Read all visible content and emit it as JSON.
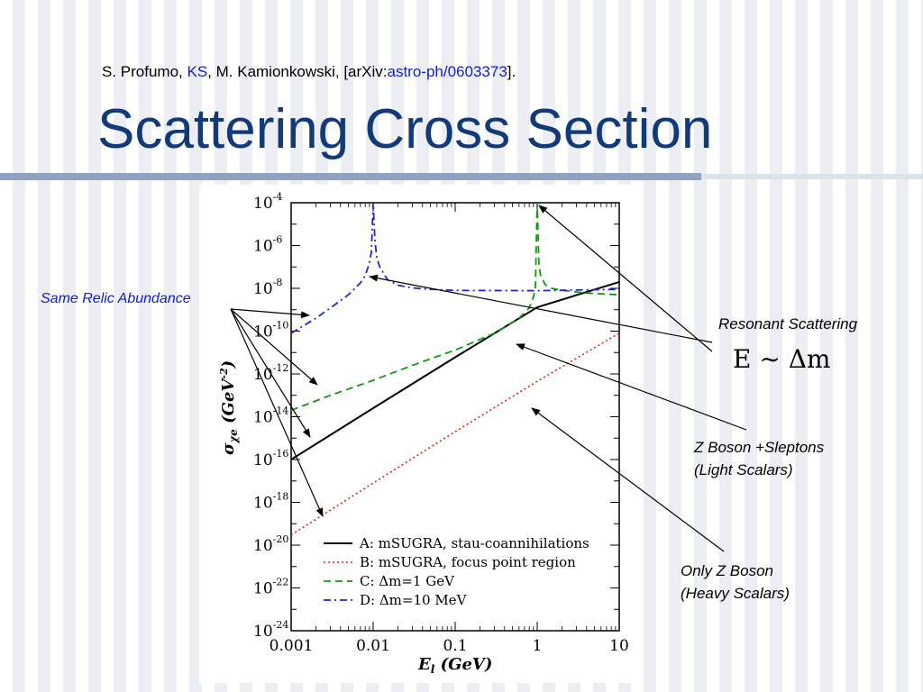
{
  "citation": {
    "authors_a": "S. Profumo, ",
    "authors_ks": "KS",
    "authors_b": ", M. Kamionkowski, [arXiv:",
    "arxiv_id": "astro-ph/0603373",
    "tail": "]."
  },
  "slide_title": "Scattering Cross Section",
  "annotations": {
    "same_relic": "Same Relic Abundance",
    "resonant": "Resonant Scattering",
    "formula": "E ∼ Δm",
    "zboson_sleptons_1": "Z Boson +Sleptons",
    "zboson_sleptons_2": "(Light Scalars)",
    "zboson_only_1": "Only Z Boson",
    "zboson_only_2": "(Heavy Scalars)"
  },
  "colors": {
    "title": "#123a7a",
    "series_a": "#000000",
    "series_b": "#e02020",
    "series_c": "#119911",
    "series_d": "#2222dd",
    "annotation_blue": "#1020d0"
  },
  "chart_data": {
    "type": "line",
    "x_scale": "log",
    "y_scale": "log",
    "xlim": [
      0.001,
      10
    ],
    "ylim": [
      1e-24,
      0.0001
    ],
    "xlabel": "E_l (GeV)",
    "ylabel": "σ_χe (GeV^-2)",
    "x_ticks": [
      "0.001",
      "0.01",
      "0.1",
      "1",
      "10"
    ],
    "y_ticks": [
      "-4",
      "-6",
      "-8",
      "-10",
      "-12",
      "-14",
      "-16",
      "-18",
      "-20",
      "-22",
      "-24"
    ],
    "legend_position": "bottom-right",
    "series": [
      {
        "name": "A: mSUGRA, stau-coannihilations",
        "style": "solid",
        "x": [
          0.001,
          0.01,
          0.1,
          1,
          10
        ],
        "y": [
          1e-16,
          2.5e-14,
          6e-12,
          1.3e-09,
          2e-08
        ]
      },
      {
        "name": "B: mSUGRA, focus point region",
        "style": "dotted",
        "x": [
          0.001,
          0.01,
          0.1,
          1,
          10
        ],
        "y": [
          3e-20,
          8e-18,
          2e-15,
          4.5e-13,
          8e-11
        ]
      },
      {
        "name": "C: Δm=1 GeV",
        "style": "dashed",
        "x": [
          0.001,
          0.003,
          0.01,
          0.03,
          0.1,
          0.3,
          0.6,
          0.8,
          0.9,
          0.95,
          1.0,
          1.05,
          1.1,
          1.25,
          1.5,
          2,
          4,
          10
        ],
        "y": [
          2e-14,
          1e-13,
          5e-13,
          2.5e-12,
          1.3e-11,
          8e-11,
          4e-10,
          1.2e-09,
          4e-09,
          1.2e-08,
          0.0001,
          1.2e-07,
          4e-08,
          1.5e-08,
          1e-08,
          8e-09,
          6e-09,
          5e-09
        ]
      },
      {
        "name": "D: Δm=10 MeV",
        "style": "dashdot",
        "x": [
          0.001,
          0.002,
          0.003,
          0.005,
          0.007,
          0.008,
          0.009,
          0.0095,
          0.01,
          0.0105,
          0.011,
          0.012,
          0.015,
          0.02,
          0.03,
          0.05,
          0.1,
          1,
          10
        ],
        "y": [
          8e-11,
          4e-10,
          1.2e-09,
          5e-09,
          1.8e-08,
          4e-08,
          1.5e-07,
          5e-07,
          0.0001,
          2e-06,
          3e-07,
          1e-07,
          2.5e-08,
          1.4e-08,
          1.05e-08,
          9e-09,
          8e-09,
          7.8e-09,
          9e-09
        ]
      }
    ]
  }
}
